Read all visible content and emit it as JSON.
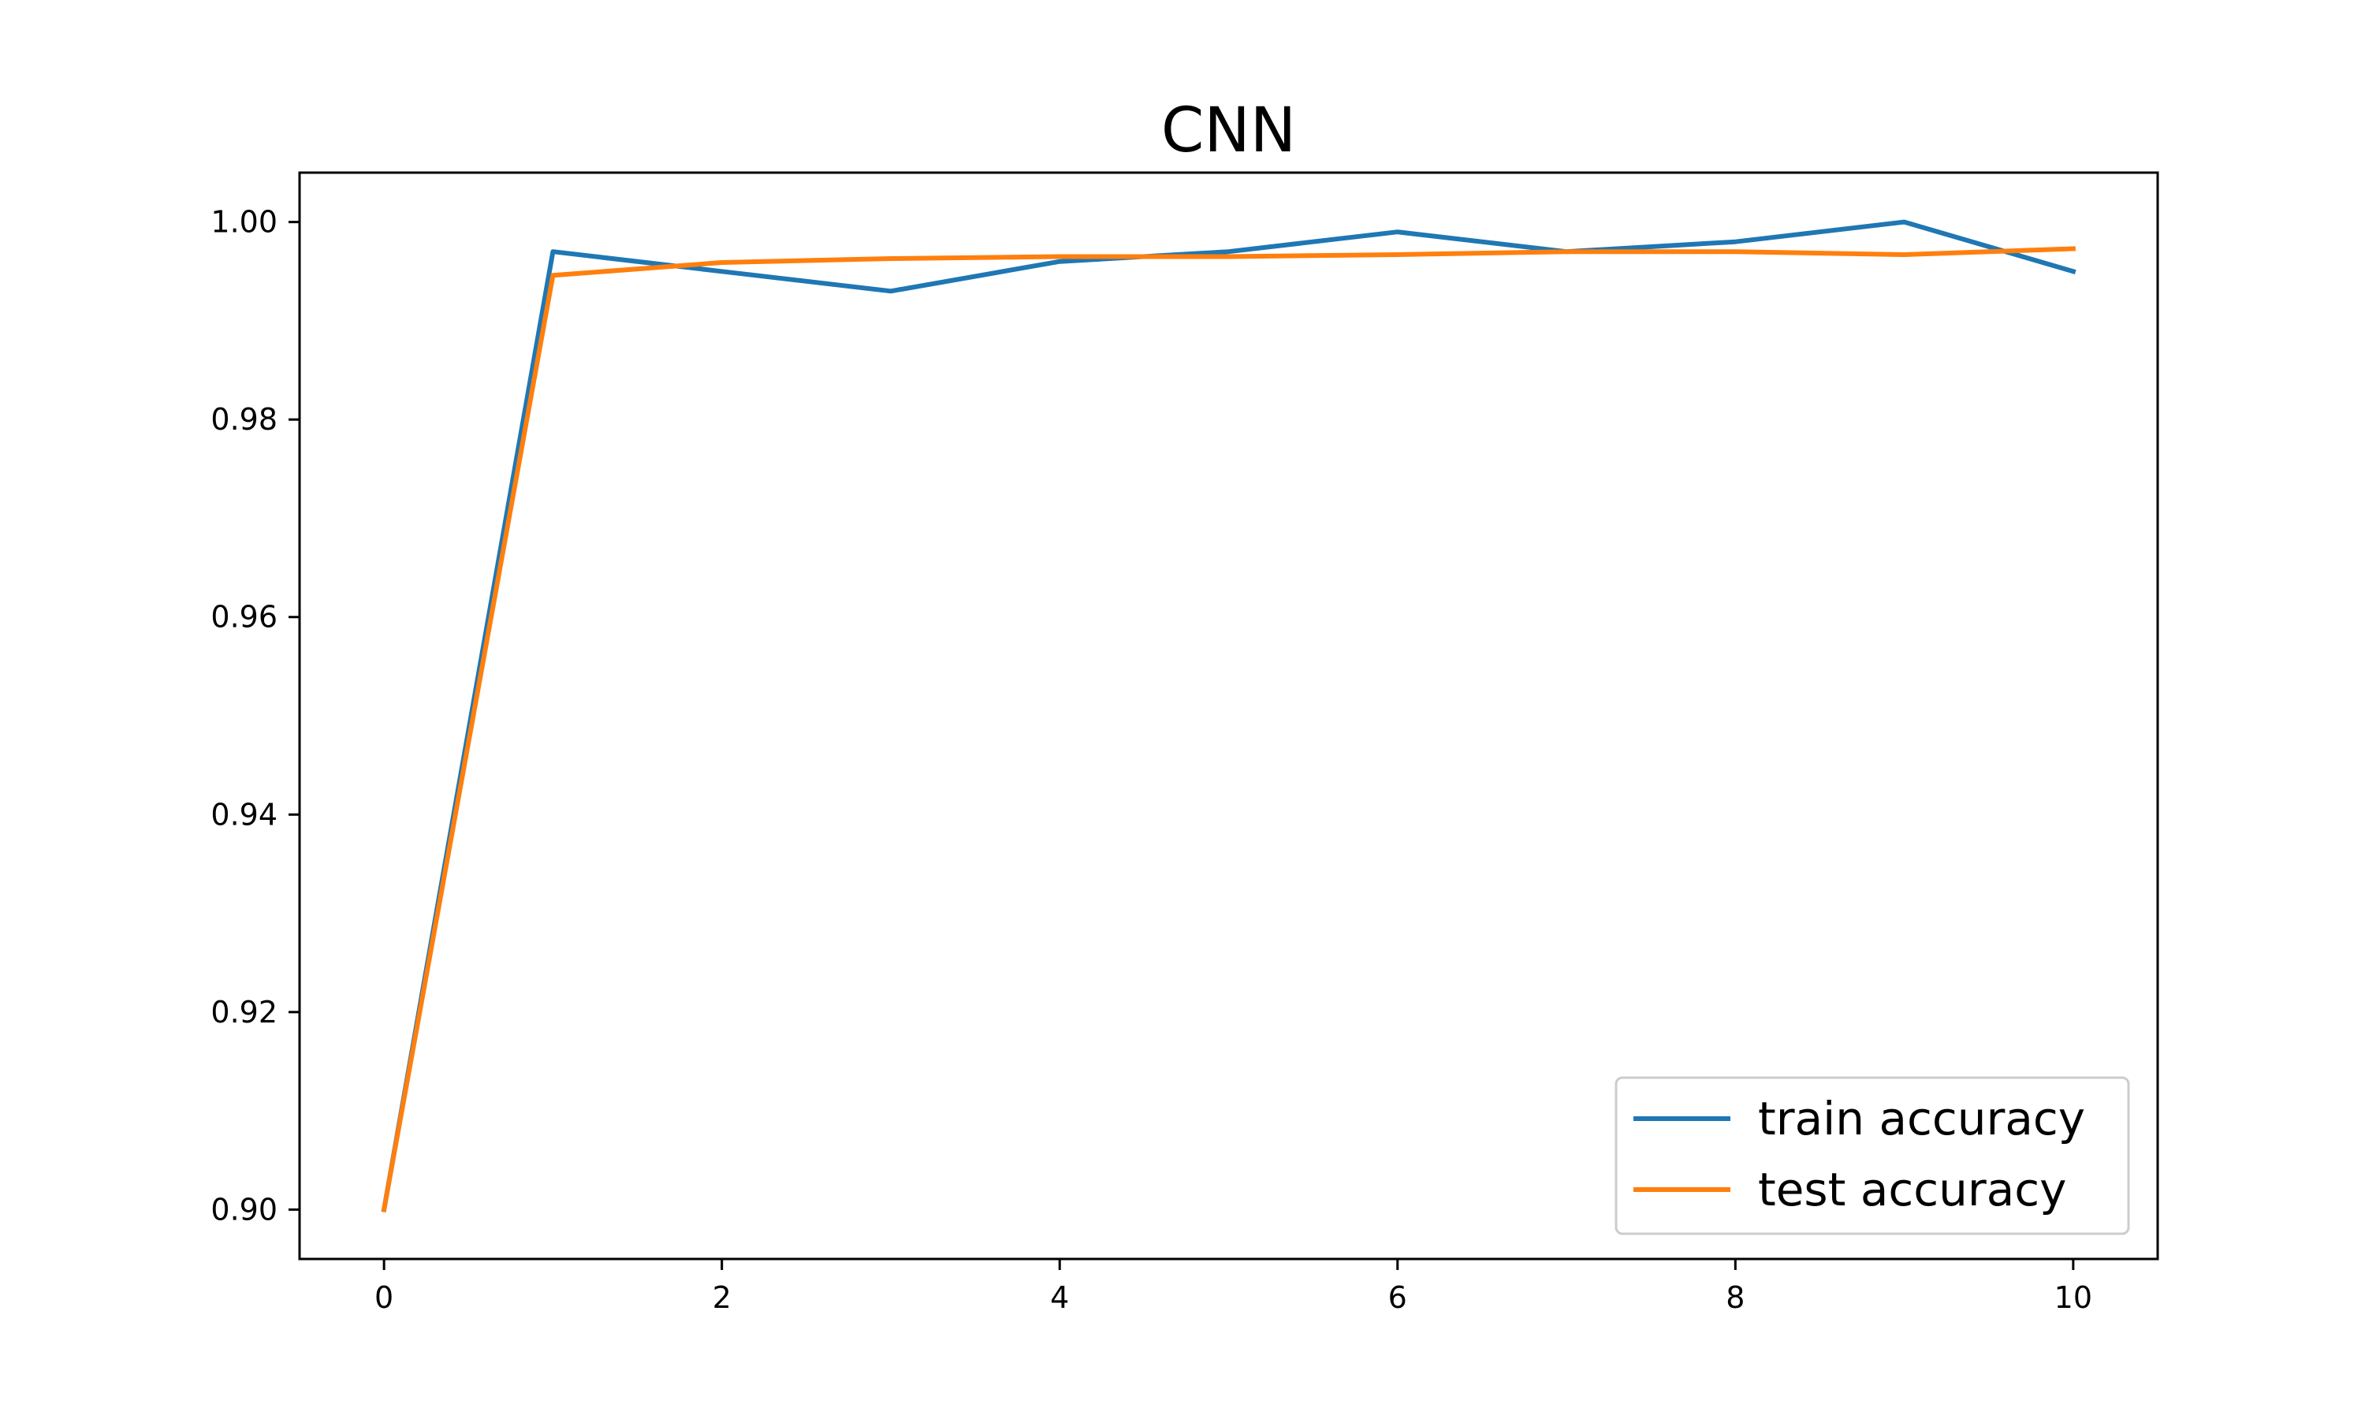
{
  "chart_data": {
    "type": "line",
    "title": "CNN",
    "xlabel": "",
    "ylabel": "",
    "xlim": [
      -0.5,
      10.5
    ],
    "ylim": [
      0.895,
      1.005
    ],
    "xticks": [
      0,
      2,
      4,
      6,
      8,
      10
    ],
    "yticks": [
      0.9,
      0.92,
      0.94,
      0.96,
      0.98,
      1.0
    ],
    "ytick_labels": [
      "0.90",
      "0.92",
      "0.94",
      "0.96",
      "0.98",
      "1.00"
    ],
    "xtick_labels": [
      "0",
      "2",
      "4",
      "6",
      "8",
      "10"
    ],
    "grid": false,
    "legend_position": "lower-right",
    "x": [
      0,
      1,
      2,
      3,
      4,
      5,
      6,
      7,
      8,
      9,
      10
    ],
    "series": [
      {
        "name": "train accuracy",
        "color": "#1f77b4",
        "values": [
          0.9,
          0.997,
          0.995,
          0.993,
          0.996,
          0.997,
          0.999,
          0.997,
          0.998,
          1.0,
          0.995
        ]
      },
      {
        "name": "test accuracy",
        "color": "#ff7f0e",
        "values": [
          0.9,
          0.9946,
          0.9959,
          0.9963,
          0.9965,
          0.9965,
          0.9967,
          0.997,
          0.997,
          0.9967,
          0.9973
        ]
      }
    ]
  }
}
